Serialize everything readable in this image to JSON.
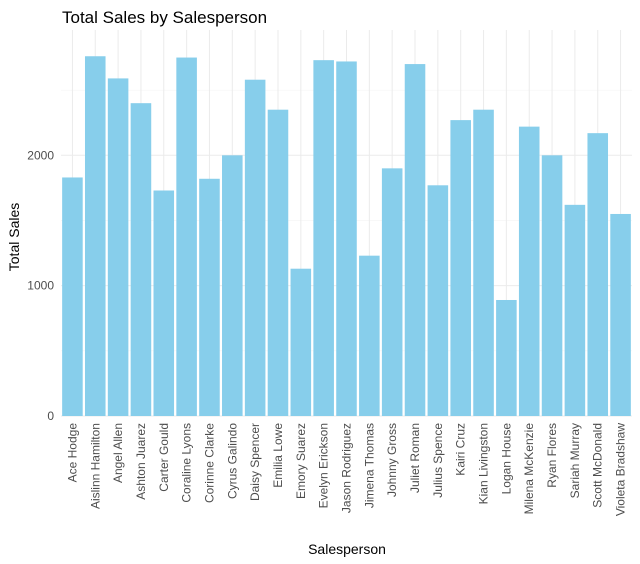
{
  "chart_data": {
    "type": "bar",
    "title": "Total Sales by Salesperson",
    "xlabel": "Salesperson",
    "ylabel": "Total Sales",
    "ylim": [
      0,
      2900
    ],
    "yticks": [
      0,
      1000,
      2000
    ],
    "grid": true,
    "bar_color": "#87CEEB",
    "categories": [
      "Ace Hodge",
      "Aislinn Hamilton",
      "Angel Allen",
      "Ashton Juarez",
      "Carter Gould",
      "Coraline Lyons",
      "Corinne Clarke",
      "Cyrus Galindo",
      "Daisy Spencer",
      "Emilia Lowe",
      "Emory Suarez",
      "Evelyn Erickson",
      "Jason Rodriguez",
      "Jimena Thomas",
      "Johnny Gross",
      "Juliet Roman",
      "Julius Spence",
      "Kairi Cruz",
      "Kian Livingston",
      "Logan House",
      "Milena McKenzie",
      "Ryan Flores",
      "Sariah Murray",
      "Scott McDonald",
      "Violeta Bradshaw"
    ],
    "values": [
      1830,
      2760,
      2590,
      2400,
      1730,
      2750,
      1820,
      2000,
      2580,
      2350,
      1130,
      2730,
      2720,
      1230,
      1900,
      2700,
      1770,
      2270,
      2350,
      890,
      2220,
      2000,
      1620,
      2170,
      1550
    ]
  }
}
